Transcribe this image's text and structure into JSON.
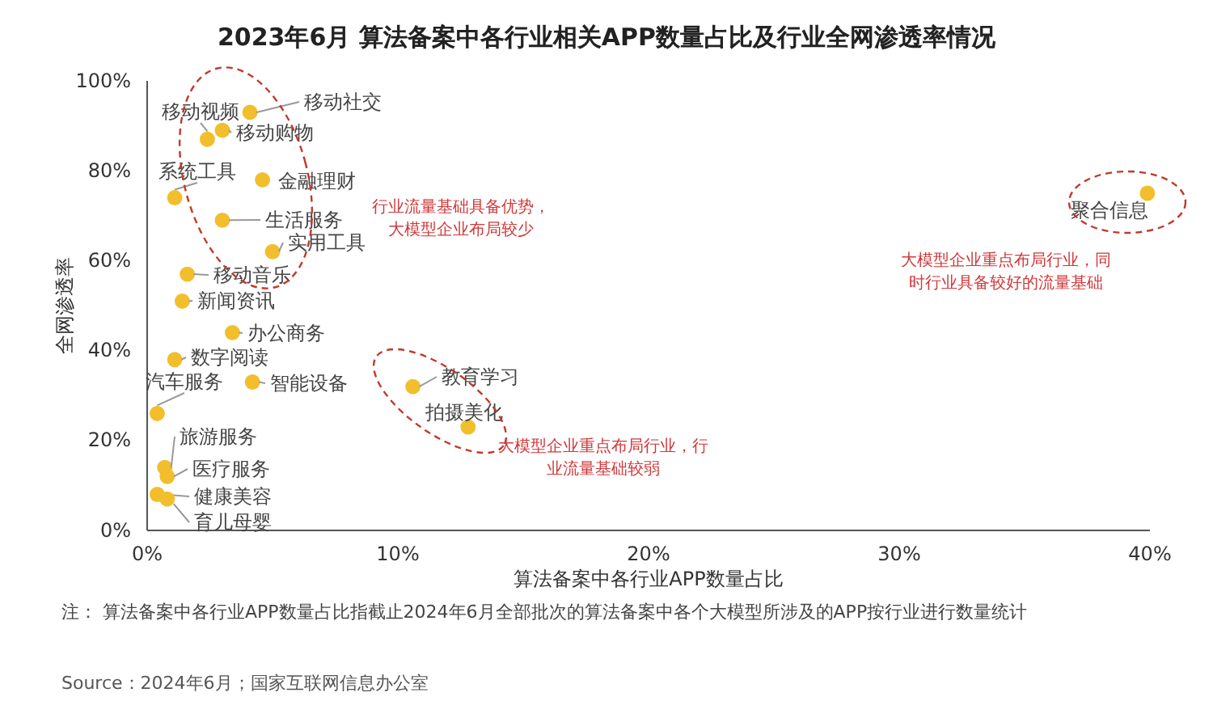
{
  "chart_data": {
    "type": "scatter",
    "title": "2023年6月 算法备案中各行业相关APP数量占比及行业全网渗透率情况",
    "xlabel": "算法备案中各行业APP数量占比",
    "ylabel": "全网渗透率",
    "xlim": [
      0,
      40
    ],
    "xticks": [
      {
        "value": 0,
        "label": "0%"
      },
      {
        "value": 10,
        "label": "10%"
      },
      {
        "value": 20,
        "label": "20%"
      },
      {
        "value": 30,
        "label": "30%"
      },
      {
        "value": 40,
        "label": "40%"
      }
    ],
    "ylim": [
      0,
      100
    ],
    "yticks": [
      {
        "value": 0,
        "label": "0%"
      },
      {
        "value": 20,
        "label": "20%"
      },
      {
        "value": 40,
        "label": "40%"
      },
      {
        "value": 60,
        "label": "60%"
      },
      {
        "value": 80,
        "label": "80%"
      },
      {
        "value": 100,
        "label": "100%"
      }
    ],
    "grid": false,
    "legend": false,
    "marker": "circle",
    "series": [
      {
        "name": "移动视频",
        "color": "#f2be2c",
        "x": [
          2.4
        ],
        "values": [
          87
        ]
      },
      {
        "name": "移动社交",
        "color": "#f2be2c",
        "x": [
          4.1
        ],
        "values": [
          93
        ]
      },
      {
        "name": "移动购物",
        "color": "#f2be2c",
        "x": [
          3.0
        ],
        "values": [
          89
        ]
      },
      {
        "name": "系统工具",
        "color": "#f2be2c",
        "x": [
          1.1
        ],
        "values": [
          74
        ]
      },
      {
        "name": "金融理财",
        "color": "#f2be2c",
        "x": [
          4.6
        ],
        "values": [
          78
        ]
      },
      {
        "name": "生活服务",
        "color": "#f2be2c",
        "x": [
          3.0
        ],
        "values": [
          69
        ]
      },
      {
        "name": "实用工具",
        "color": "#f2be2c",
        "x": [
          5.0
        ],
        "values": [
          62
        ]
      },
      {
        "name": "移动音乐",
        "color": "#f2be2c",
        "x": [
          1.6
        ],
        "values": [
          57
        ]
      },
      {
        "name": "新闻资讯",
        "color": "#f2be2c",
        "x": [
          1.4
        ],
        "values": [
          51
        ]
      },
      {
        "name": "办公商务",
        "color": "#f2be2c",
        "x": [
          3.4
        ],
        "values": [
          44
        ]
      },
      {
        "name": "数字阅读",
        "color": "#f2be2c",
        "x": [
          1.1
        ],
        "values": [
          38
        ]
      },
      {
        "name": "汽车服务",
        "color": "#f2be2c",
        "x": [
          0.4
        ],
        "values": [
          26
        ]
      },
      {
        "name": "智能设备",
        "color": "#f2be2c",
        "x": [
          4.2
        ],
        "values": [
          33
        ]
      },
      {
        "name": "旅游服务",
        "color": "#f2be2c",
        "x": [
          0.7
        ],
        "values": [
          14
        ]
      },
      {
        "name": "医疗服务",
        "color": "#f2be2c",
        "x": [
          0.8
        ],
        "values": [
          12
        ]
      },
      {
        "name": "健康美容",
        "color": "#f2be2c",
        "x": [
          0.4
        ],
        "values": [
          8
        ]
      },
      {
        "name": "育儿母婴",
        "color": "#f2be2c",
        "x": [
          0.8
        ],
        "values": [
          7
        ]
      },
      {
        "name": "教育学习",
        "color": "#f2be2c",
        "x": [
          10.6
        ],
        "values": [
          32
        ]
      },
      {
        "name": "拍摄美化",
        "color": "#f2be2c",
        "x": [
          12.8
        ],
        "values": [
          23
        ]
      },
      {
        "name": "聚合信息",
        "color": "#f2be2c",
        "x": [
          39.9
        ],
        "values": [
          75
        ]
      }
    ],
    "annotations": [
      "行业流量基础具备优势，大模型企业布局较少",
      "大模型企业重点布局行业，同时行业具备较好的流量基础",
      "大模型企业重点布局行业，行业流量基础较弱",
      "注：   算法备案中各行业APP数量占比指截止2024年6月全部批次的算法备案中各个大模型所涉及的APP按行业进行数量统计",
      "Source：2024年6月；国家互联网信息办公室"
    ]
  }
}
